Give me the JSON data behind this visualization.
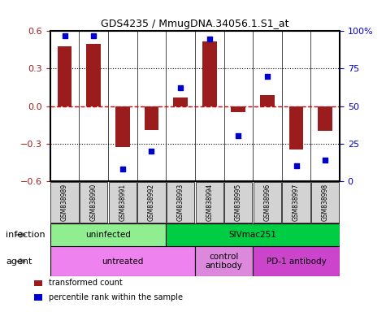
{
  "title": "GDS4235 / MmugDNA.34056.1.S1_at",
  "samples": [
    "GSM838989",
    "GSM838990",
    "GSM838991",
    "GSM838992",
    "GSM838993",
    "GSM838994",
    "GSM838995",
    "GSM838996",
    "GSM838997",
    "GSM838998"
  ],
  "bar_values": [
    0.48,
    0.5,
    -0.33,
    -0.19,
    0.07,
    0.52,
    -0.05,
    0.09,
    -0.35,
    -0.2
  ],
  "dot_values_pct": [
    97,
    97,
    8,
    20,
    62,
    95,
    30,
    70,
    10,
    14
  ],
  "ylim_left": [
    -0.6,
    0.6
  ],
  "ylim_right": [
    0,
    100
  ],
  "yticks_left": [
    -0.6,
    -0.3,
    0.0,
    0.3,
    0.6
  ],
  "yticks_right": [
    0,
    25,
    50,
    75,
    100
  ],
  "ytick_right_labels": [
    "0",
    "25",
    "50",
    "75",
    "100%"
  ],
  "bar_color": "#9B1C1C",
  "dot_color": "#0000CC",
  "grid_color": "#000000",
  "zero_line_color": "#CC0000",
  "infection_groups": [
    {
      "label": "uninfected",
      "start": 0,
      "end": 4,
      "color": "#90EE90"
    },
    {
      "label": "SIVmac251",
      "start": 4,
      "end": 10,
      "color": "#00CC44"
    }
  ],
  "agent_groups": [
    {
      "label": "untreated",
      "start": 0,
      "end": 5,
      "color": "#EE82EE"
    },
    {
      "label": "control\nantibody",
      "start": 5,
      "end": 7,
      "color": "#DD88DD"
    },
    {
      "label": "PD-1 antibody",
      "start": 7,
      "end": 10,
      "color": "#CC44CC"
    }
  ],
  "legend_items": [
    {
      "label": "transformed count",
      "color": "#9B1C1C"
    },
    {
      "label": "percentile rank within the sample",
      "color": "#0000CC"
    }
  ],
  "infection_label": "infection",
  "agent_label": "agent"
}
